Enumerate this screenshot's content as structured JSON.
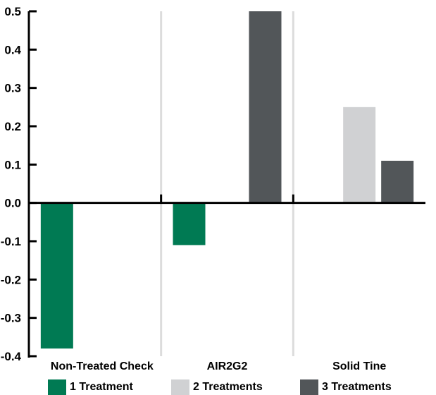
{
  "chart_data": {
    "type": "bar",
    "categories": [
      "Non-Treated Check",
      "AIR2G2",
      "Solid Tine"
    ],
    "series": [
      {
        "name": "1 Treatment",
        "color": "#007a53",
        "values": [
          -0.38,
          -0.11,
          0.0
        ]
      },
      {
        "name": "2 Treatments",
        "color": "#d0d1d3",
        "values": [
          0.0,
          0.0,
          0.25
        ]
      },
      {
        "name": "3 Treatments",
        "color": "#525659",
        "values": [
          0.0,
          0.5,
          0.11
        ]
      }
    ],
    "yticks": [
      "0.5",
      "0.4",
      "0.3",
      "0.2",
      "0.1",
      "0.0",
      "-0.1",
      "-0.2",
      "-0.3",
      "-0.4"
    ],
    "ylim": [
      -0.4,
      0.5
    ],
    "legend_position": "bottom",
    "grid": false
  }
}
